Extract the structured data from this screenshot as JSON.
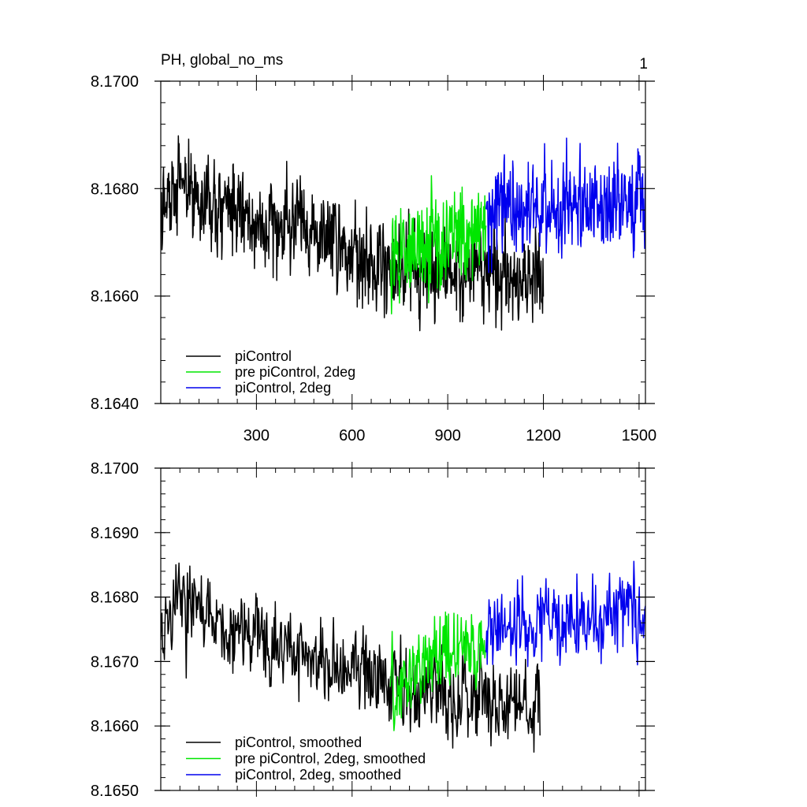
{
  "page_number": "1",
  "chart_data": [
    {
      "type": "line",
      "title": "PH, global_no_ms",
      "xlabel": "",
      "ylabel": "",
      "xlim": [
        0,
        1520
      ],
      "ylim": [
        8.164,
        8.17
      ],
      "x_ticks": [
        300,
        600,
        900,
        1200,
        1500
      ],
      "y_ticks": [
        "8.1640",
        "8.1660",
        "8.1680",
        "8.1700"
      ],
      "grid": false,
      "legend_position": "bottom-left",
      "series": [
        {
          "name": "piControl",
          "color": "#000000",
          "x": [
            0,
            50,
            100,
            150,
            200,
            250,
            300,
            350,
            400,
            450,
            500,
            550,
            600,
            650,
            700,
            750,
            800,
            850,
            900,
            950,
            1000,
            1050,
            1100,
            1150,
            1200
          ],
          "y": [
            8.1675,
            8.1682,
            8.1679,
            8.1677,
            8.1676,
            8.1675,
            8.1674,
            8.1673,
            8.1673,
            8.1672,
            8.1671,
            8.167,
            8.1669,
            8.1668,
            8.1667,
            8.1666,
            8.1665,
            8.1664,
            8.1664,
            8.1664,
            8.1665,
            8.1664,
            8.1663,
            8.1663,
            8.1664
          ]
        },
        {
          "name": "pre piControl, 2deg",
          "color": "#00e600",
          "x": [
            720,
            750,
            780,
            810,
            840,
            870,
            900,
            930,
            960,
            990,
            1020
          ],
          "y": [
            8.1668,
            8.1668,
            8.1669,
            8.167,
            8.167,
            8.167,
            8.1671,
            8.1671,
            8.1671,
            8.1672,
            8.1672
          ]
        },
        {
          "name": "piControl, 2deg",
          "color": "#0000ee",
          "x": [
            1020,
            1060,
            1100,
            1140,
            1180,
            1220,
            1260,
            1300,
            1340,
            1380,
            1420,
            1460,
            1500,
            1520
          ],
          "y": [
            8.1675,
            8.1675,
            8.1676,
            8.1676,
            8.1677,
            8.1677,
            8.1677,
            8.1678,
            8.1677,
            8.1677,
            8.1677,
            8.1678,
            8.1678,
            8.1677
          ]
        }
      ]
    },
    {
      "type": "line",
      "title": "",
      "xlabel": "",
      "ylabel": "",
      "xlim": [
        0,
        1520
      ],
      "ylim": [
        8.165,
        8.17
      ],
      "x_ticks": [
        300,
        600,
        900,
        1200,
        1500
      ],
      "y_ticks": [
        "8.1650",
        "8.1660",
        "8.1670",
        "8.1680",
        "8.1690",
        "8.1700"
      ],
      "grid": false,
      "legend_position": "bottom-left",
      "series": [
        {
          "name": "piControl, smoothed",
          "color": "#000000",
          "x": [
            0,
            50,
            100,
            150,
            200,
            250,
            300,
            350,
            400,
            450,
            500,
            550,
            600,
            650,
            700,
            750,
            800,
            850,
            900,
            950,
            1000,
            1050,
            1100,
            1150,
            1190
          ],
          "y": [
            8.1676,
            8.168,
            8.1678,
            8.1676,
            8.1675,
            8.1674,
            8.1673,
            8.1672,
            8.1672,
            8.1671,
            8.167,
            8.1669,
            8.1668,
            8.1667,
            8.1667,
            8.1666,
            8.1665,
            8.1665,
            8.1664,
            8.1664,
            8.1665,
            8.1664,
            8.1663,
            8.1663,
            8.1664
          ]
        },
        {
          "name": "pre piControl, 2deg, smoothed",
          "color": "#00e600",
          "x": [
            720,
            750,
            780,
            810,
            840,
            870,
            900,
            930,
            960,
            990,
            1020
          ],
          "y": [
            8.1667,
            8.1667,
            8.1668,
            8.1669,
            8.1669,
            8.167,
            8.1671,
            8.1671,
            8.1672,
            8.1672,
            8.1673
          ]
        },
        {
          "name": "piControl, 2deg, smoothed",
          "color": "#0000ee",
          "x": [
            1020,
            1060,
            1100,
            1140,
            1180,
            1220,
            1260,
            1300,
            1340,
            1380,
            1420,
            1460,
            1500,
            1520
          ],
          "y": [
            8.1675,
            8.1674,
            8.1675,
            8.1675,
            8.1676,
            8.1676,
            8.1677,
            8.1677,
            8.1676,
            8.1676,
            8.1677,
            8.1678,
            8.1677,
            8.1678
          ]
        }
      ]
    }
  ]
}
